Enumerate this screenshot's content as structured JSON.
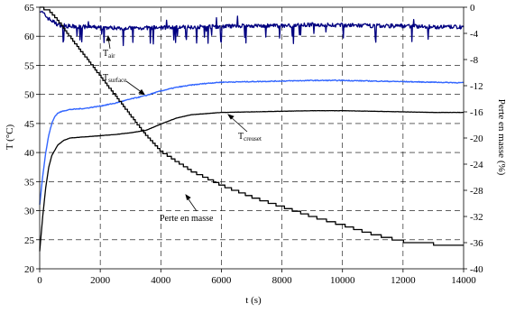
{
  "chart_data": {
    "type": "line",
    "xlabel": "t (s)",
    "ylabel_left": "T (°C)",
    "ylabel_right": "Perte en masse (%)",
    "xlim": [
      0,
      14000
    ],
    "ylim_left": [
      20,
      65
    ],
    "ylim_right": [
      -40,
      0
    ],
    "xticks": [
      0,
      2000,
      4000,
      6000,
      8000,
      10000,
      12000,
      14000
    ],
    "yticks_left": [
      20,
      25,
      30,
      35,
      40,
      45,
      50,
      55,
      60,
      65
    ],
    "yticks_right": [
      0,
      -4,
      -8,
      -12,
      -16,
      -20,
      -24,
      -28,
      -32,
      -36,
      -40
    ],
    "grid": "dashed",
    "colors": {
      "t_air": "#000080",
      "t_surface": "#3366ff",
      "t_creuset": "#000000",
      "perte": "#000000"
    },
    "annotations": [
      {
        "id": "t_air",
        "main": "T",
        "sub": "air"
      },
      {
        "id": "t_surface",
        "main": "T",
        "sub": "surface"
      },
      {
        "id": "t_creuset",
        "main": "T",
        "sub": "creuset"
      },
      {
        "id": "perte",
        "main": "Perte en masse",
        "sub": ""
      }
    ],
    "series": [
      {
        "id": "t_air",
        "axis": "left",
        "noise": 0.7,
        "x": [
          0,
          300,
          600,
          1000,
          1500,
          2000,
          3000,
          4000,
          5000,
          6000,
          7000,
          8000,
          9000,
          10000,
          11000,
          12000,
          13000,
          14000
        ],
        "y": [
          64.5,
          63.0,
          62.0,
          61.7,
          61.6,
          61.5,
          61.4,
          61.5,
          61.6,
          61.7,
          61.8,
          61.8,
          62.0,
          61.9,
          61.8,
          61.8,
          61.6,
          61.6
        ]
      },
      {
        "id": "t_surface",
        "axis": "left",
        "noise": 0.15,
        "x": [
          0,
          100,
          200,
          300,
          400,
          500,
          600,
          800,
          1000,
          1500,
          2000,
          2500,
          3000,
          3500,
          4000,
          4500,
          5000,
          5500,
          6000,
          7000,
          8000,
          9000,
          10000,
          11000,
          12000,
          13000,
          14000
        ],
        "y": [
          31.0,
          36.0,
          40.0,
          43.0,
          45.0,
          46.2,
          46.8,
          47.2,
          47.4,
          47.6,
          48.0,
          48.5,
          49.2,
          49.8,
          50.6,
          51.2,
          51.6,
          51.9,
          52.1,
          52.2,
          52.3,
          52.4,
          52.4,
          52.3,
          52.2,
          52.1,
          52.0
        ]
      },
      {
        "id": "t_creuset",
        "axis": "left",
        "noise": 0.04,
        "x": [
          0,
          100,
          200,
          300,
          400,
          600,
          800,
          1000,
          1500,
          2000,
          2500,
          3000,
          3500,
          4000,
          4500,
          5000,
          6000,
          7000,
          8000,
          9000,
          10000,
          11000,
          12000,
          13000,
          14000
        ],
        "y": [
          23.0,
          29.0,
          34.0,
          37.5,
          39.5,
          41.3,
          42.1,
          42.5,
          42.7,
          42.9,
          43.1,
          43.4,
          43.8,
          44.9,
          45.9,
          46.5,
          46.9,
          47.0,
          47.1,
          47.2,
          47.2,
          47.1,
          47.0,
          46.9,
          46.9
        ]
      },
      {
        "id": "perte",
        "axis": "right",
        "noise": 0,
        "step": true,
        "x": [
          0,
          300,
          600,
          1000,
          1500,
          2000,
          2500,
          3000,
          3500,
          4000,
          4500,
          5000,
          6000,
          7000,
          8000,
          9000,
          10000,
          11000,
          12000,
          13000,
          14000
        ],
        "y": [
          0,
          -0.5,
          -2.0,
          -4.5,
          -7.5,
          -10.5,
          -13.5,
          -16.5,
          -19.5,
          -22.0,
          -23.5,
          -25.0,
          -27.2,
          -29.0,
          -30.5,
          -32.0,
          -33.3,
          -34.7,
          -35.8,
          -36.2,
          -36.4
        ]
      }
    ]
  }
}
